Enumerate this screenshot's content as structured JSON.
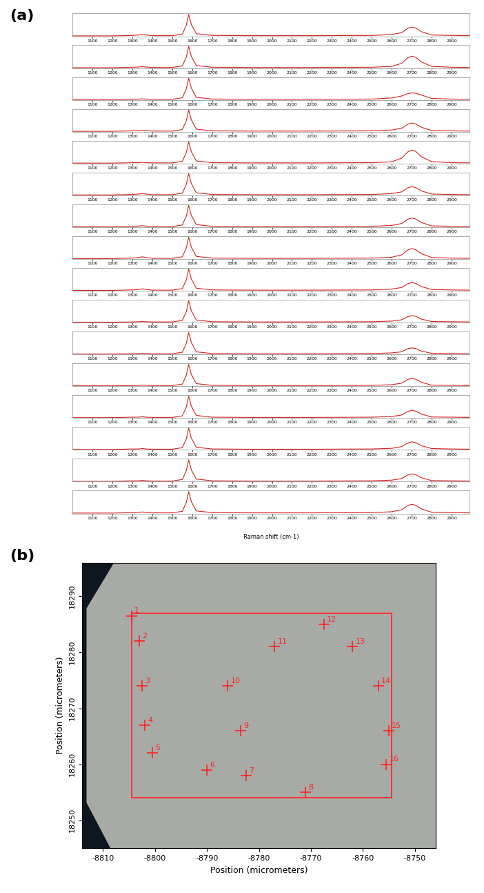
{
  "chart_data": [
    {
      "type": "line",
      "panel_label": "(a)",
      "x_label": "Raman shift (cm-1)",
      "x": [
        1000,
        1100,
        1200,
        1300,
        1330,
        1350,
        1370,
        1400,
        1500,
        1550,
        1570,
        1582,
        1595,
        1620,
        1700,
        1900,
        2200,
        2500,
        2600,
        2650,
        2680,
        2700,
        2720,
        2750,
        2800,
        2900,
        2990
      ],
      "series": [
        {
          "color": "#d42020",
          "values": [
            0.02,
            0.02,
            0.02,
            0.04,
            0.06,
            0.08,
            0.06,
            0.03,
            0.03,
            0.1,
            0.5,
            1.0,
            0.55,
            0.12,
            0.04,
            0.03,
            0.03,
            0.04,
            0.08,
            0.17,
            0.36,
            0.42,
            0.38,
            0.21,
            0.06,
            0.04,
            0.03
          ]
        },
        {
          "color": "#d42020",
          "values": [
            0.02,
            0.02,
            0.02,
            0.04,
            0.05,
            0.07,
            0.05,
            0.03,
            0.03,
            0.1,
            0.5,
            1.0,
            0.55,
            0.12,
            0.04,
            0.03,
            0.03,
            0.04,
            0.08,
            0.22,
            0.47,
            0.55,
            0.5,
            0.28,
            0.08,
            0.04,
            0.03
          ]
        },
        {
          "color": "#d42020",
          "values": [
            0.02,
            0.02,
            0.02,
            0.03,
            0.04,
            0.05,
            0.04,
            0.03,
            0.03,
            0.1,
            0.5,
            1.0,
            0.55,
            0.12,
            0.04,
            0.03,
            0.03,
            0.04,
            0.09,
            0.18,
            0.29,
            0.32,
            0.31,
            0.22,
            0.07,
            0.04,
            0.03
          ]
        },
        {
          "color": "#d42020",
          "values": [
            0.02,
            0.02,
            0.02,
            0.04,
            0.05,
            0.07,
            0.05,
            0.03,
            0.03,
            0.1,
            0.5,
            1.0,
            0.55,
            0.12,
            0.04,
            0.03,
            0.03,
            0.04,
            0.08,
            0.16,
            0.34,
            0.4,
            0.36,
            0.2,
            0.06,
            0.04,
            0.03
          ]
        },
        {
          "color": "#d42020",
          "values": [
            0.02,
            0.02,
            0.02,
            0.04,
            0.04,
            0.06,
            0.04,
            0.03,
            0.03,
            0.1,
            0.5,
            1.0,
            0.55,
            0.12,
            0.04,
            0.03,
            0.03,
            0.04,
            0.08,
            0.25,
            0.53,
            0.62,
            0.56,
            0.31,
            0.09,
            0.04,
            0.03
          ]
        },
        {
          "color": "#d42020",
          "values": [
            0.02,
            0.02,
            0.02,
            0.04,
            0.06,
            0.08,
            0.06,
            0.03,
            0.03,
            0.1,
            0.5,
            1.0,
            0.55,
            0.12,
            0.04,
            0.03,
            0.03,
            0.04,
            0.08,
            0.16,
            0.34,
            0.4,
            0.36,
            0.2,
            0.06,
            0.04,
            0.03
          ]
        },
        {
          "color": "#d42020",
          "values": [
            0.02,
            0.02,
            0.02,
            0.04,
            0.05,
            0.07,
            0.05,
            0.03,
            0.03,
            0.1,
            0.5,
            1.0,
            0.55,
            0.12,
            0.04,
            0.03,
            0.03,
            0.04,
            0.08,
            0.17,
            0.36,
            0.42,
            0.38,
            0.21,
            0.06,
            0.04,
            0.03
          ]
        },
        {
          "color": "#d42020",
          "values": [
            0.02,
            0.02,
            0.02,
            0.04,
            0.07,
            0.1,
            0.07,
            0.03,
            0.03,
            0.1,
            0.5,
            1.0,
            0.55,
            0.12,
            0.04,
            0.03,
            0.03,
            0.04,
            0.08,
            0.19,
            0.41,
            0.48,
            0.43,
            0.24,
            0.07,
            0.04,
            0.03
          ]
        },
        {
          "color": "#d42020",
          "values": [
            0.02,
            0.02,
            0.02,
            0.04,
            0.06,
            0.09,
            0.06,
            0.03,
            0.03,
            0.1,
            0.5,
            1.0,
            0.55,
            0.12,
            0.04,
            0.03,
            0.03,
            0.04,
            0.08,
            0.15,
            0.32,
            0.38,
            0.34,
            0.19,
            0.06,
            0.04,
            0.03
          ]
        },
        {
          "color": "#d42020",
          "values": [
            0.02,
            0.02,
            0.02,
            0.03,
            0.04,
            0.05,
            0.04,
            0.03,
            0.03,
            0.1,
            0.5,
            1.0,
            0.55,
            0.12,
            0.04,
            0.03,
            0.03,
            0.04,
            0.07,
            0.13,
            0.27,
            0.32,
            0.29,
            0.16,
            0.05,
            0.04,
            0.03
          ]
        },
        {
          "color": "#d42020",
          "values": [
            0.02,
            0.02,
            0.02,
            0.03,
            0.04,
            0.05,
            0.04,
            0.03,
            0.03,
            0.1,
            0.5,
            1.0,
            0.55,
            0.12,
            0.04,
            0.03,
            0.03,
            0.04,
            0.07,
            0.12,
            0.26,
            0.3,
            0.27,
            0.15,
            0.05,
            0.04,
            0.03
          ]
        },
        {
          "color": "#d42020",
          "values": [
            0.02,
            0.02,
            0.02,
            0.03,
            0.04,
            0.05,
            0.04,
            0.03,
            0.03,
            0.1,
            0.5,
            1.0,
            0.55,
            0.12,
            0.04,
            0.03,
            0.03,
            0.04,
            0.07,
            0.14,
            0.31,
            0.36,
            0.32,
            0.18,
            0.05,
            0.04,
            0.03
          ]
        },
        {
          "color": "#d42020",
          "values": [
            0.02,
            0.02,
            0.02,
            0.04,
            0.04,
            0.06,
            0.04,
            0.03,
            0.03,
            0.1,
            0.5,
            1.0,
            0.55,
            0.12,
            0.04,
            0.03,
            0.03,
            0.04,
            0.07,
            0.14,
            0.3,
            0.35,
            0.32,
            0.18,
            0.05,
            0.04,
            0.03
          ]
        },
        {
          "color": "#d42020",
          "values": [
            0.02,
            0.02,
            0.02,
            0.04,
            0.04,
            0.06,
            0.04,
            0.03,
            0.03,
            0.1,
            0.5,
            1.0,
            0.55,
            0.12,
            0.04,
            0.03,
            0.03,
            0.04,
            0.07,
            0.15,
            0.31,
            0.37,
            0.33,
            0.19,
            0.06,
            0.04,
            0.03
          ]
        },
        {
          "color": "#d42020",
          "values": [
            0.02,
            0.02,
            0.02,
            0.04,
            0.04,
            0.06,
            0.04,
            0.03,
            0.03,
            0.1,
            0.5,
            1.0,
            0.55,
            0.12,
            0.04,
            0.03,
            0.03,
            0.04,
            0.07,
            0.14,
            0.31,
            0.36,
            0.32,
            0.18,
            0.05,
            0.04,
            0.03
          ]
        },
        {
          "color": "#d42020",
          "values": [
            0.02,
            0.02,
            0.02,
            0.04,
            0.05,
            0.07,
            0.05,
            0.03,
            0.03,
            0.1,
            0.5,
            1.0,
            0.55,
            0.12,
            0.04,
            0.03,
            0.03,
            0.04,
            0.08,
            0.17,
            0.36,
            0.42,
            0.38,
            0.21,
            0.06,
            0.04,
            0.03
          ]
        }
      ],
      "xlim": [
        1000,
        2990
      ],
      "xticks": [
        1100,
        1200,
        1300,
        1400,
        1500,
        1600,
        1700,
        1800,
        1900,
        2000,
        2100,
        2200,
        2300,
        2400,
        2500,
        2600,
        2700,
        2800,
        2900
      ],
      "ylim": [
        0,
        1.05
      ],
      "tick_labels": "x"
    },
    {
      "type": "scatter",
      "panel_label": "(b)",
      "x_label": "Position (micrometers)",
      "y_label": "Position (micrometers)",
      "x": [
        -8804.5,
        -8803,
        -8802.5,
        -8802,
        -8800.5,
        -8790,
        -8782.5,
        -8771,
        -8783.5,
        -8786,
        -8777,
        -8767.5,
        -8762,
        -8757,
        -8755,
        -8755.5
      ],
      "values": [
        18286.5,
        18282,
        18274,
        18267,
        18262,
        18259,
        18258,
        18255,
        18266,
        18274,
        18281,
        18285,
        18281,
        18274,
        18266,
        18260
      ],
      "point_labels": [
        "1",
        "2",
        "3",
        "4",
        "5",
        "6",
        "7",
        "8",
        "9",
        "10",
        "11",
        "12",
        "13",
        "14",
        "15",
        "16"
      ],
      "color": "#ff2020",
      "marker": "plus",
      "rectangle": {
        "x": [
          -8804.5,
          -8754.5
        ],
        "y": [
          18254,
          18287
        ]
      },
      "xlim": [
        -8814,
        -8746
      ],
      "ylim": [
        18245,
        18296
      ],
      "xticks": [
        -8810,
        -8800,
        -8790,
        -8780,
        -8770,
        -8760,
        -8750
      ],
      "yticks": [
        18250,
        18260,
        18270,
        18280,
        18290
      ]
    }
  ]
}
